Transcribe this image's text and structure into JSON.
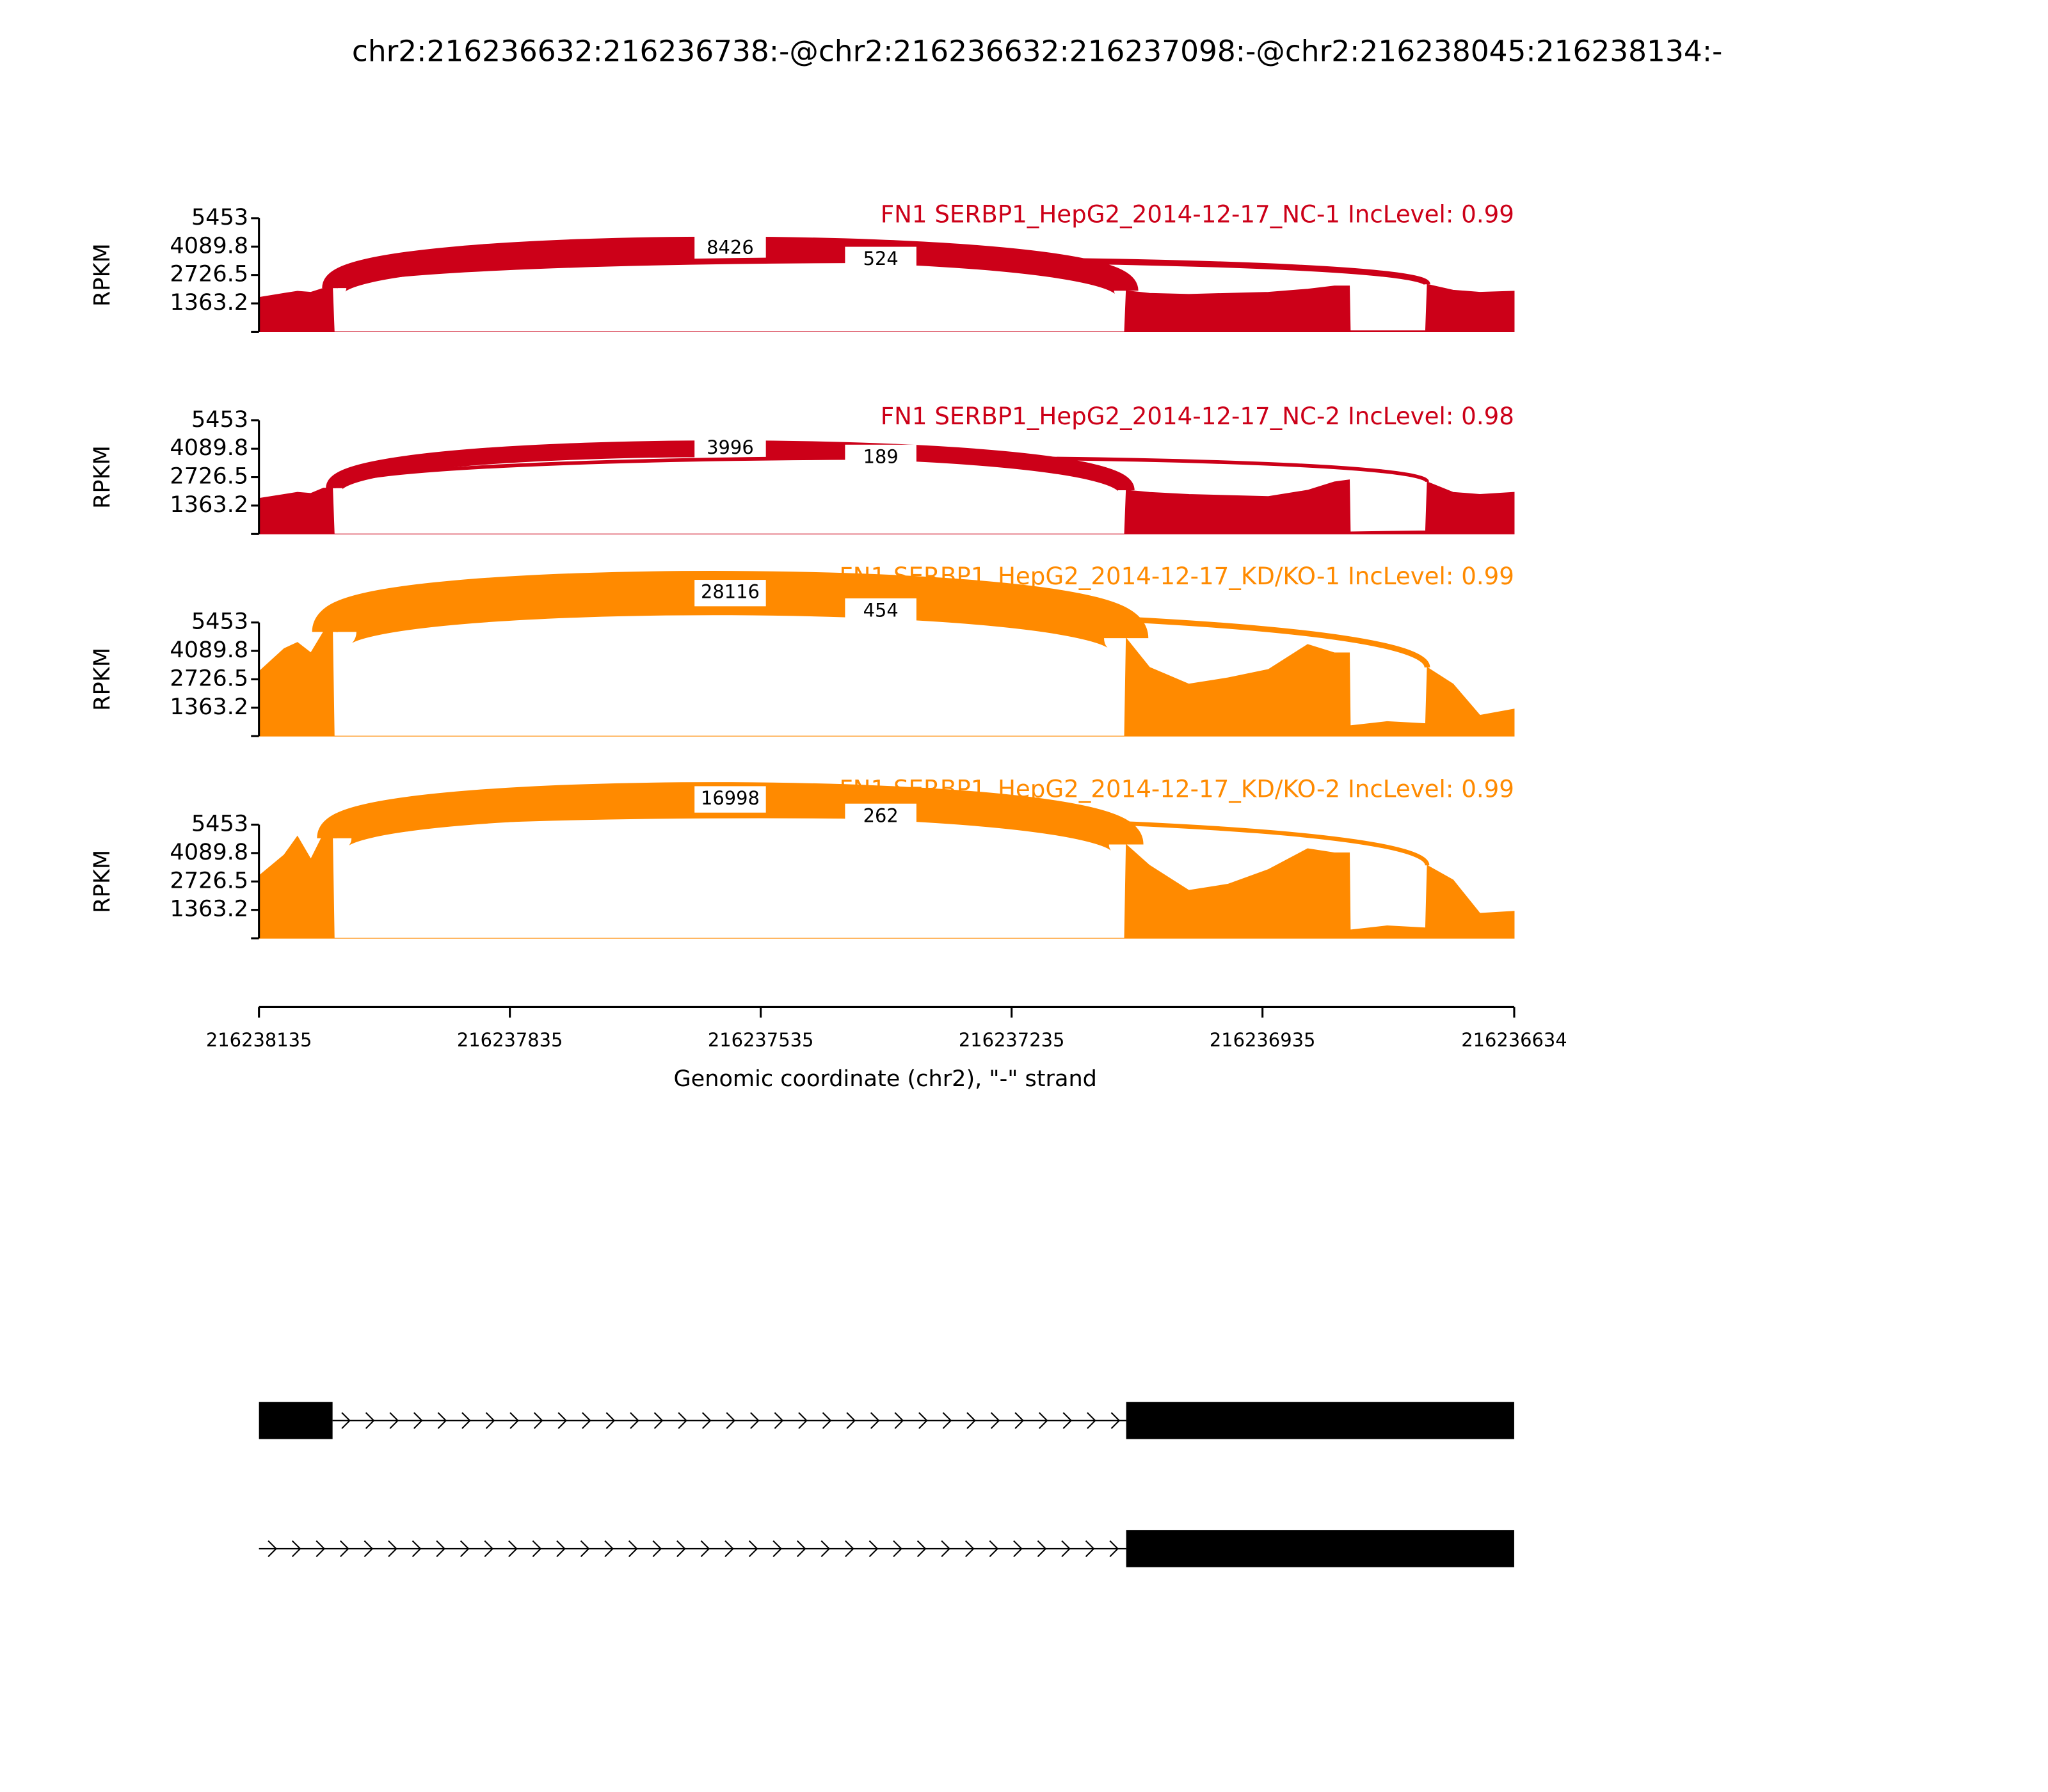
{
  "chart_data": {
    "type": "sashimi",
    "title": "chr2:216236632:216236738:-@chr2:216236632:216237098:-@chr2:216238045:216238134:-",
    "xlabel": "Genomic coordinate (chr2), \"-\" strand",
    "ylabel": "RPKM",
    "xlim": [
      216238135,
      216236634
    ],
    "xticks": [
      216238135,
      216237835,
      216237535,
      216237235,
      216236935,
      216236634
    ],
    "ylim": [
      0,
      5453
    ],
    "yticks": [
      1363.2,
      2726.5,
      4089.8,
      5453
    ],
    "x": [
      216238135,
      216238105,
      216238089,
      216238073,
      216238058,
      216238047,
      216238045,
      216237574,
      216237100,
      216237098,
      216237070,
      216237023,
      216236976,
      216236928,
      216236881,
      216236849,
      216236831,
      216236830,
      216236786,
      216236740,
      216236738,
      216236707,
      216236675,
      216236634
    ],
    "series": [
      {
        "name": "FN1 SERBP1_HepG2_2014-12-17_NC-1 IncLevel: 0.99",
        "color": "#cc0018",
        "values": [
          1650,
          1850,
          1950,
          1900,
          2090,
          2100,
          0,
          0,
          0,
          1970,
          1850,
          1800,
          1850,
          1900,
          2050,
          2200,
          2200,
          50,
          50,
          50,
          2280,
          2000,
          1900,
          1950
        ],
        "junctions": [
          {
            "start": 216238045,
            "end": 216237098,
            "count": 8426
          },
          {
            "start": 216238045,
            "end": 216236738,
            "count": 524
          }
        ]
      },
      {
        "name": "FN1 SERBP1_HepG2_2014-12-17_NC-2 IncLevel: 0.98",
        "color": "#cc0018",
        "values": [
          1710,
          1900,
          2000,
          1950,
          2200,
          2200,
          0,
          0,
          0,
          2100,
          2000,
          1900,
          1850,
          1800,
          2100,
          2500,
          2600,
          100,
          130,
          150,
          2500,
          2000,
          1900,
          2000
        ],
        "junctions": [
          {
            "start": 216238045,
            "end": 216237098,
            "count": 3996
          },
          {
            "start": 216238045,
            "end": 216236738,
            "count": 189
          }
        ]
      },
      {
        "name": "FN1 SERBP1_HepG2_2014-12-17_KD/KO-1 IncLevel: 0.99",
        "color": "#ff8a00",
        "values": [
          3100,
          4200,
          4500,
          4000,
          5000,
          5000,
          0,
          0,
          0,
          4700,
          3300,
          2500,
          2800,
          3200,
          4400,
          4000,
          4000,
          500,
          700,
          600,
          3300,
          2500,
          1000,
          1300
        ],
        "junctions": [
          {
            "start": 216238045,
            "end": 216237098,
            "count": 28116
          },
          {
            "start": 216238045,
            "end": 216236738,
            "count": 454
          }
        ]
      },
      {
        "name": "FN1 SERBP1_HepG2_2014-12-17_KD/KO-2 IncLevel: 0.99",
        "color": "#ff8a00",
        "values": [
          3000,
          4000,
          4900,
          3800,
          5000,
          4800,
          0,
          0,
          0,
          4500,
          3500,
          2300,
          2600,
          3300,
          4300,
          4100,
          4100,
          400,
          600,
          500,
          3500,
          2800,
          1200,
          1300
        ],
        "junctions": [
          {
            "start": 216238045,
            "end": 216237098,
            "count": 16998
          },
          {
            "start": 216238045,
            "end": 216236738,
            "count": 262
          }
        ]
      }
    ],
    "transcripts": [
      {
        "exons": [
          [
            216238135,
            216238047
          ],
          [
            216237098,
            216236634
          ]
        ],
        "introns": [
          [
            216238047,
            216237098
          ]
        ]
      },
      {
        "exons": [
          [
            216237098,
            216236634
          ]
        ],
        "introns": [
          [
            216238135,
            216237098
          ]
        ]
      }
    ]
  }
}
